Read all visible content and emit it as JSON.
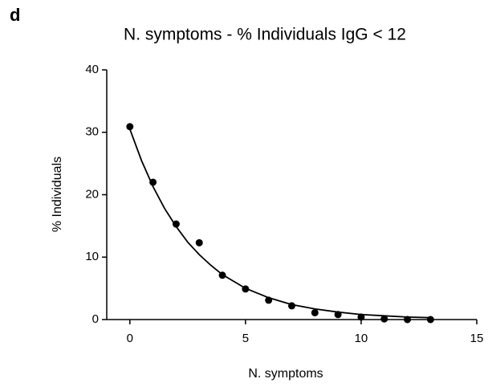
{
  "panel_label": "d",
  "chart_data": {
    "type": "scatter",
    "title": "N. symptoms - % Individuals IgG < 12",
    "x_label": "N. symptoms",
    "y_label": "% Individuals",
    "x": [
      0,
      1,
      2,
      3,
      4,
      5,
      6,
      7,
      8,
      9,
      10,
      11,
      12,
      13
    ],
    "values": [
      30.9,
      22.0,
      15.3,
      12.3,
      7.1,
      4.9,
      3.1,
      2.2,
      1.1,
      0.8,
      0.4,
      0.1,
      0.0,
      0.0
    ],
    "color": "#000000",
    "fit": {
      "x": [
        0,
        0.5,
        1,
        1.5,
        2,
        2.5,
        3,
        3.5,
        4,
        5,
        6,
        7,
        8,
        9,
        10,
        11,
        12,
        13
      ],
      "values": [
        30.5,
        25.5,
        21.3,
        17.8,
        14.9,
        12.4,
        10.4,
        8.7,
        7.2,
        5.0,
        3.5,
        2.4,
        1.7,
        1.2,
        0.8,
        0.6,
        0.4,
        0.3
      ]
    },
    "xlim": [
      -1,
      15
    ],
    "ylim": [
      0,
      40
    ],
    "xticks": [
      0,
      5,
      10,
      15
    ],
    "yticks": [
      0,
      10,
      20,
      30,
      40
    ],
    "grid": false
  }
}
